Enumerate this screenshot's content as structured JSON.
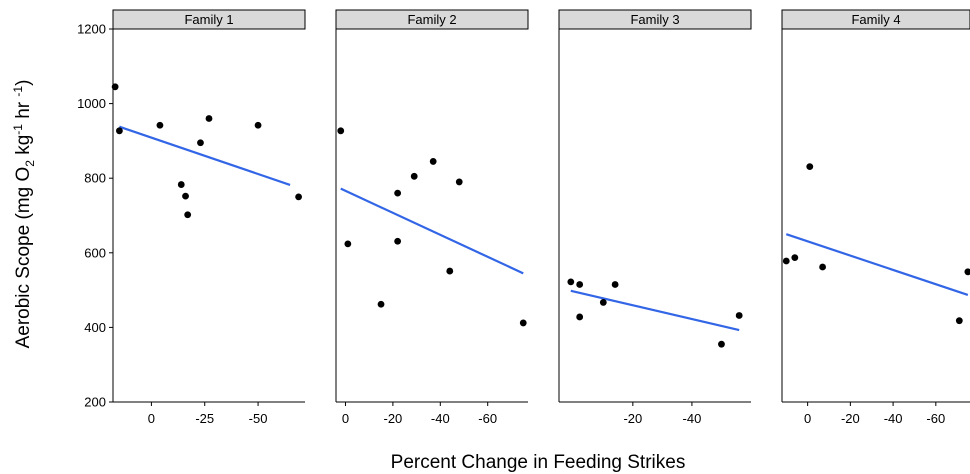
{
  "chart_data": {
    "type": "scatter",
    "xlabel": "Percent Change in Feeding Strikes",
    "ylabel": "Aerobic Scope (mg O2 kg-1 hr -1)",
    "ylabel_parts": [
      "Aerobic Scope (mg O",
      "2",
      " kg",
      "-1",
      " hr ",
      "-1",
      ")"
    ],
    "ylim": [
      200,
      1200
    ],
    "yticks": [
      200,
      400,
      600,
      800,
      1000,
      1200
    ],
    "grid": false,
    "colors": {
      "point": "#000000",
      "fit_line": "#3366e6",
      "strip_bg": "#d9d9d9"
    },
    "panels": [
      {
        "title": "Family 1",
        "xlim": [
          18,
          -72
        ],
        "xticks": [
          0,
          -25,
          -50
        ],
        "points": [
          {
            "x": 17,
            "y": 1045
          },
          {
            "x": 15,
            "y": 927
          },
          {
            "x": -4,
            "y": 942
          },
          {
            "x": -27,
            "y": 960
          },
          {
            "x": -23,
            "y": 895
          },
          {
            "x": -50,
            "y": 942
          },
          {
            "x": -14,
            "y": 783
          },
          {
            "x": -16,
            "y": 752
          },
          {
            "x": -17,
            "y": 702
          },
          {
            "x": -69,
            "y": 750
          }
        ],
        "fit": {
          "x": [
            15,
            -65
          ],
          "y": [
            938,
            782
          ]
        }
      },
      {
        "title": "Family 2",
        "xlim": [
          4,
          -77
        ],
        "xticks": [
          0,
          -20,
          -40,
          -60
        ],
        "points": [
          {
            "x": 2,
            "y": 927
          },
          {
            "x": -1,
            "y": 624
          },
          {
            "x": -15,
            "y": 462
          },
          {
            "x": -22,
            "y": 760
          },
          {
            "x": -22,
            "y": 631
          },
          {
            "x": -29,
            "y": 805
          },
          {
            "x": -37,
            "y": 845
          },
          {
            "x": -44,
            "y": 551
          },
          {
            "x": -48,
            "y": 790
          },
          {
            "x": -75,
            "y": 412
          }
        ],
        "fit": {
          "x": [
            2,
            -75
          ],
          "y": [
            772,
            545
          ]
        }
      },
      {
        "title": "Family 3",
        "xlim": [
          5,
          -60
        ],
        "xticks": [
          -20,
          -40
        ],
        "points": [
          {
            "x": 1,
            "y": 522
          },
          {
            "x": -2,
            "y": 515
          },
          {
            "x": -2,
            "y": 428
          },
          {
            "x": -10,
            "y": 467
          },
          {
            "x": -14,
            "y": 515
          },
          {
            "x": -50,
            "y": 355
          },
          {
            "x": -56,
            "y": 432
          }
        ],
        "fit": {
          "x": [
            1,
            -56
          ],
          "y": [
            498,
            393
          ]
        }
      },
      {
        "title": "Family 4",
        "xlim": [
          12,
          -76
        ],
        "xticks": [
          0,
          -20,
          -40,
          -60
        ],
        "points": [
          {
            "x": 10,
            "y": 578
          },
          {
            "x": 6,
            "y": 587
          },
          {
            "x": -1,
            "y": 831
          },
          {
            "x": -7,
            "y": 562
          },
          {
            "x": -71,
            "y": 418
          },
          {
            "x": -75,
            "y": 549
          }
        ],
        "fit": {
          "x": [
            10,
            -75
          ],
          "y": [
            650,
            487
          ]
        }
      }
    ]
  }
}
